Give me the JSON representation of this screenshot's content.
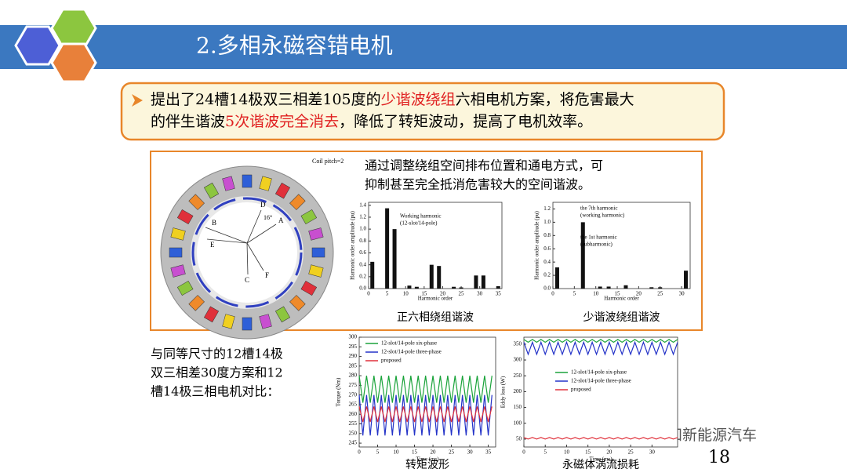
{
  "header": {
    "title": "2.多相永磁容错电机"
  },
  "callout": {
    "line1": [
      "提出了24槽14极双三相差105度的",
      "少谐波绕组",
      "六相电机方案，将危害最大"
    ],
    "line2": [
      "的伴生谐波",
      "5次谐波完全消去",
      "，降低了转矩波动，提高了电机效率。"
    ]
  },
  "diagram": {
    "labels": [
      "Coil pitch=2",
      "A",
      "B",
      "C",
      "D",
      "E",
      "F",
      "16°"
    ]
  },
  "panel_text": [
    "通过调整绕组空间排布位置和通电方式，可",
    "抑制甚至完全抵消危害较大的空间谐波。"
  ],
  "compare_text": [
    "与同等尺寸的12槽14极",
    "双三相差30度方案和12",
    "槽14极三相电机对比："
  ],
  "figures": [
    {
      "caption": "正六相绕组谐波",
      "chart": {
        "type": "bar",
        "color": "#111111",
        "x_label": "Harmonic order",
        "y_label": "Harmonic order amplitude (pu)",
        "x": [
          1,
          5,
          7,
          11,
          13,
          17,
          19,
          23,
          25,
          29,
          31,
          35
        ],
        "values": [
          0.45,
          1.35,
          1.0,
          0.05,
          0.03,
          0.4,
          0.38,
          0.03,
          0.02,
          0.22,
          0.22,
          0.04
        ],
        "xlim": [
          0,
          36
        ],
        "ylim": [
          0,
          1.45
        ],
        "xticks": [
          0,
          5,
          10,
          15,
          20,
          25,
          30,
          35
        ],
        "yticks": [
          {
            "value": 0,
            "label": "0.0"
          },
          {
            "value": 0.2,
            "label": "0.2"
          },
          {
            "value": 0.4,
            "label": "0.4"
          },
          {
            "value": 0.6,
            "label": "0.6"
          },
          {
            "value": 0.8,
            "label": "0.8"
          },
          {
            "value": 1,
            "label": "1.0"
          },
          {
            "value": 1.2,
            "label": "1.2"
          },
          {
            "value": 1.4,
            "label": "1.4"
          }
        ],
        "annotations": [
          [
            "Working harmonic",
            "(12-slot/14-pole)"
          ]
        ]
      }
    },
    {
      "caption": "少谐波绕组谐波",
      "chart": {
        "type": "bar",
        "color": "#111111",
        "x_label": "Harmonic order",
        "y_label": "Harmonic order amplitude (pu)",
        "x": [
          1,
          7,
          11,
          13,
          17,
          23,
          25,
          31
        ],
        "values": [
          0.32,
          1.0,
          0.03,
          0.03,
          0.05,
          0.02,
          0.02,
          0.27
        ],
        "xlim": [
          0,
          32
        ],
        "ylim": [
          0,
          1.3
        ],
        "xticks": [
          0,
          5,
          10,
          15,
          20,
          25,
          30
        ],
        "yticks": [
          {
            "value": 0,
            "label": "0.0"
          },
          {
            "value": 0.2,
            "label": "0.2"
          },
          {
            "value": 0.4,
            "label": "0.4"
          },
          {
            "value": 0.6,
            "label": "0.6"
          },
          {
            "value": 0.8,
            "label": "0.8"
          },
          {
            "value": 1,
            "label": "1.0"
          },
          {
            "value": 1.2,
            "label": "1.2"
          }
        ],
        "annotations": [
          [
            "the 7th harmonic",
            "(working harmonic)"
          ],
          [
            "the 1st harmonic",
            "(subharmonic)"
          ]
        ]
      }
    },
    {
      "caption": "转矩波形",
      "chart": {
        "type": "line",
        "x_label": "Time (ms)",
        "y_label": "Torque (Nm)",
        "x": [
          0,
          1,
          2,
          3,
          4,
          5,
          6,
          7,
          8,
          9,
          10,
          11,
          12,
          13,
          14,
          15,
          16,
          17,
          18,
          19,
          20,
          21,
          22,
          23,
          24,
          25,
          26,
          27,
          28,
          29,
          30,
          31,
          32,
          33,
          34,
          35,
          36
        ],
        "xlim": [
          0,
          37
        ],
        "ylim": [
          243,
          300
        ],
        "xticks": [
          0,
          5,
          10,
          15,
          20,
          25,
          30,
          35
        ],
        "yticks": [
          245,
          250,
          255,
          260,
          265,
          270,
          275,
          280,
          285,
          290,
          295,
          300
        ],
        "series": [
          {
            "name": "12-slot/14-pole six-phase",
            "color": "#1aa33a",
            "values": [
              280,
              266,
              280,
              266,
              280,
              266,
              280,
              266,
              280,
              266,
              280,
              266,
              280,
              266,
              280,
              266,
              280,
              266,
              280,
              266,
              280,
              266,
              280,
              266,
              280,
              266,
              280,
              266,
              280,
              266,
              280,
              266,
              280,
              266,
              280,
              266,
              280
            ]
          },
          {
            "name": "12-slot/14-pole three-phase",
            "color": "#2433c8",
            "values": [
              270,
              249,
              270,
              249,
              270,
              249,
              270,
              249,
              270,
              249,
              270,
              249,
              270,
              249,
              270,
              249,
              270,
              249,
              270,
              249,
              270,
              249,
              270,
              249,
              270,
              249,
              270,
              249,
              270,
              249,
              270,
              249,
              270,
              249,
              270,
              249,
              270
            ]
          },
          {
            "name": "proposed",
            "color": "#e0303a",
            "values": [
              264,
              256,
              264,
              256,
              264,
              256,
              264,
              256,
              264,
              256,
              264,
              256,
              264,
              256,
              264,
              256,
              264,
              256,
              264,
              256,
              264,
              256,
              264,
              256,
              264,
              256,
              264,
              256,
              264,
              256,
              264,
              256,
              264,
              256,
              264,
              256,
              264
            ]
          }
        ]
      }
    },
    {
      "caption": "永磁体涡流损耗",
      "chart": {
        "type": "line",
        "x_label": "Time (ms)",
        "y_label": "Eddy loss (W)",
        "x": [
          0,
          1,
          2,
          3,
          4,
          5,
          6,
          7,
          8,
          9,
          10,
          11,
          12,
          13,
          14,
          15,
          16,
          17,
          18,
          19,
          20,
          21,
          22,
          23,
          24,
          25,
          26,
          27,
          28,
          29,
          30,
          31,
          32,
          33,
          34,
          35,
          36
        ],
        "xlim": [
          0,
          36
        ],
        "ylim": [
          25,
          372
        ],
        "xticks": [
          0,
          5,
          10,
          15,
          20,
          25,
          30
        ],
        "yticks": [
          50,
          100,
          150,
          200,
          250,
          300,
          350
        ],
        "series": [
          {
            "name": "12-slot/14-pole six-phase",
            "color": "#1aa33a",
            "values": [
              365,
              356,
              365,
              356,
              365,
              356,
              365,
              356,
              365,
              356,
              365,
              356,
              365,
              356,
              365,
              356,
              365,
              356,
              365,
              356,
              365,
              356,
              365,
              356,
              365,
              356,
              365,
              356,
              365,
              356,
              365,
              356,
              365,
              356,
              365,
              356,
              365
            ]
          },
          {
            "name": "12-slot/14-pole three-phase",
            "color": "#2433c8",
            "values": [
              356,
              318,
              356,
              318,
              356,
              318,
              356,
              318,
              356,
              318,
              356,
              318,
              356,
              318,
              356,
              318,
              356,
              318,
              356,
              318,
              356,
              318,
              356,
              318,
              356,
              318,
              356,
              318,
              356,
              318,
              356,
              318,
              356,
              318,
              356,
              318,
              356
            ]
          },
          {
            "name": "proposed",
            "color": "#e0303a",
            "values": [
              55,
              50,
              55,
              50,
              55,
              50,
              55,
              50,
              55,
              50,
              55,
              50,
              55,
              50,
              55,
              50,
              55,
              50,
              55,
              50,
              55,
              50,
              55,
              50,
              55,
              50,
              55,
              50,
              55,
              50,
              55,
              50,
              55,
              50,
              55,
              50,
              55
            ]
          }
        ]
      }
    }
  ],
  "watermark": "焉知新能源汽车",
  "page_number": "18"
}
